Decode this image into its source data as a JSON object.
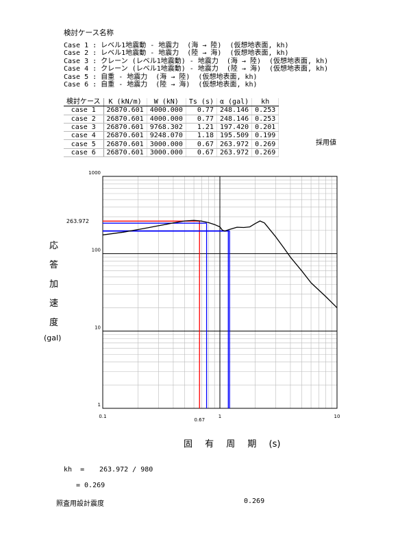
{
  "heading": "検討ケース名称",
  "cases": [
    "Case 1 : レベル1地震動 - 地震力  (海 → 陸)  (仮想地表面, kh)",
    "Case 2 : レベル1地震動 - 地震力  (陸 → 海)  (仮想地表面, kh)",
    "Case 3 : クレーン (レベル1地震動) - 地震力  (海 → 陸)  (仮想地表面, kh)",
    "Case 4 : クレーン (レベル1地震動) - 地震力  (陸 → 海)  (仮想地表面, kh)",
    "Case 5 : 自重 - 地震力  (海 → 陸)  (仮想地表面, kh)",
    "Case 6 : 自重 - 地震力  (陸 → 海)  (仮想地表面, kh)"
  ],
  "table": {
    "headers": [
      "検討ケース",
      "K (kN/m)",
      "W (kN)",
      "Ts (s)",
      "α (gal)",
      "kh"
    ],
    "rows": [
      [
        "case 1",
        "26870.601",
        "4000.000",
        "0.77",
        "248.146",
        "0.253"
      ],
      [
        "case 2",
        "26870.601",
        "4000.000",
        "0.77",
        "248.146",
        "0.253"
      ],
      [
        "case 3",
        "26870.601",
        "9768.302",
        "1.21",
        "197.420",
        "0.201"
      ],
      [
        "case 4",
        "26870.601",
        "9248.070",
        "1.18",
        "195.509",
        "0.199"
      ],
      [
        "case 5",
        "26870.601",
        "3000.000",
        "0.67",
        "263.972",
        "0.269"
      ],
      [
        "case 6",
        "26870.601",
        "3000.000",
        "0.67",
        "263.972",
        "0.269"
      ]
    ],
    "adopted_label": "採用値"
  },
  "chart_data": {
    "type": "line",
    "xscale": "log",
    "yscale": "log",
    "xlim": [
      0.1,
      10
    ],
    "ylim": [
      1,
      1000
    ],
    "x_tick_labels": [
      "0.1",
      "1",
      "10"
    ],
    "y_tick_labels": [
      "1",
      "10",
      "100",
      "1000"
    ],
    "ylabel": [
      "応",
      "答",
      "加",
      "速",
      "度",
      "(gal)"
    ],
    "xlabel": "固 有 周 期 (s)",
    "annotation_y": "263.972",
    "annotation_x": "0.67",
    "series": [
      {
        "x": [
          0.1,
          0.15,
          0.2,
          0.25,
          0.3,
          0.35,
          0.4,
          0.5,
          0.6,
          0.7,
          0.8,
          0.9,
          1.0,
          1.05,
          1.1,
          1.2,
          1.4,
          1.6,
          1.8,
          2.0,
          2.2,
          2.4,
          2.6,
          3.0,
          3.5,
          4.0,
          5.0,
          6.0,
          8.0,
          10.0
        ],
        "y": [
          175,
          190,
          205,
          218,
          230,
          240,
          250,
          265,
          270,
          264,
          252,
          238,
          222,
          202,
          196,
          205,
          220,
          218,
          222,
          245,
          265,
          250,
          215,
          165,
          120,
          90,
          60,
          42,
          28,
          20
        ]
      }
    ],
    "markers": [
      {
        "color": "#ff0000",
        "period": 0.67,
        "accel": 263.972
      },
      {
        "color": "#0000ff",
        "period": 0.77,
        "accel": 248.146
      },
      {
        "color": "#0000ff",
        "period": 1.21,
        "accel": 197.42
      },
      {
        "color": "#0000ff",
        "period": 1.18,
        "accel": 195.509
      }
    ]
  },
  "calc": {
    "line1_label": "kh  =",
    "line1_value": "263.972 / 980",
    "line2": "= 0.269",
    "design_label": "照査用設計震度",
    "design_value": "0.269"
  }
}
